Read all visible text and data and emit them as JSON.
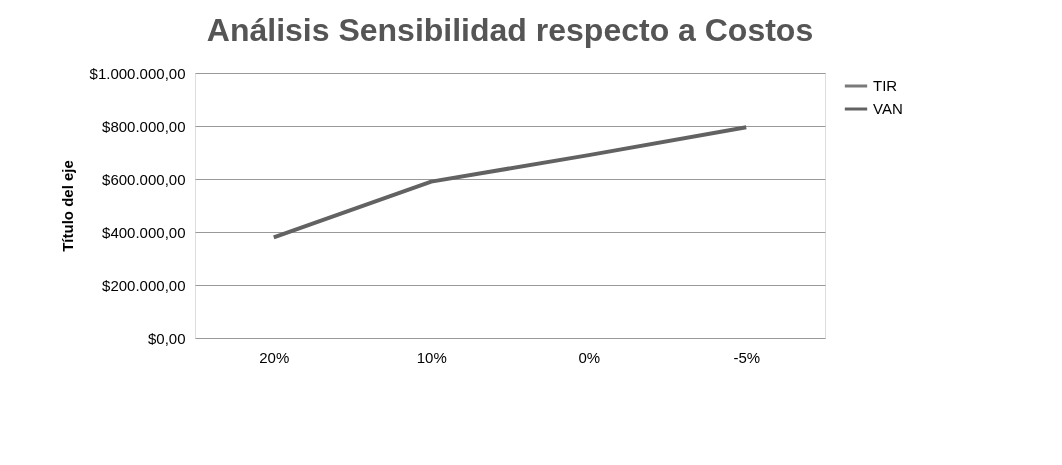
{
  "chart_data": {
    "type": "line",
    "title": "Análisis Sensibilidad respecto a Costos",
    "ylabel": "Título del eje",
    "categories": [
      "20%",
      "10%",
      "0%",
      "-5%"
    ],
    "series": [
      {
        "name": "TIR",
        "color": "#7a7a7a",
        "values": [
          null,
          null,
          null,
          null
        ]
      },
      {
        "name": "VAN",
        "color": "#626262",
        "values": [
          380000,
          590000,
          690000,
          795000
        ]
      }
    ],
    "ylim": [
      0,
      1000000
    ],
    "yticks": [
      {
        "value": 0,
        "label": "$0,00"
      },
      {
        "value": 200000,
        "label": "$200.000,00"
      },
      {
        "value": 400000,
        "label": "$400.000,00"
      },
      {
        "value": 600000,
        "label": "$600.000,00"
      },
      {
        "value": 800000,
        "label": "$800.000,00"
      },
      {
        "value": 1000000,
        "label": "$1.000.000,00"
      }
    ],
    "grid": "y",
    "legend": "right",
    "marker": "none",
    "line_style": "solid"
  }
}
